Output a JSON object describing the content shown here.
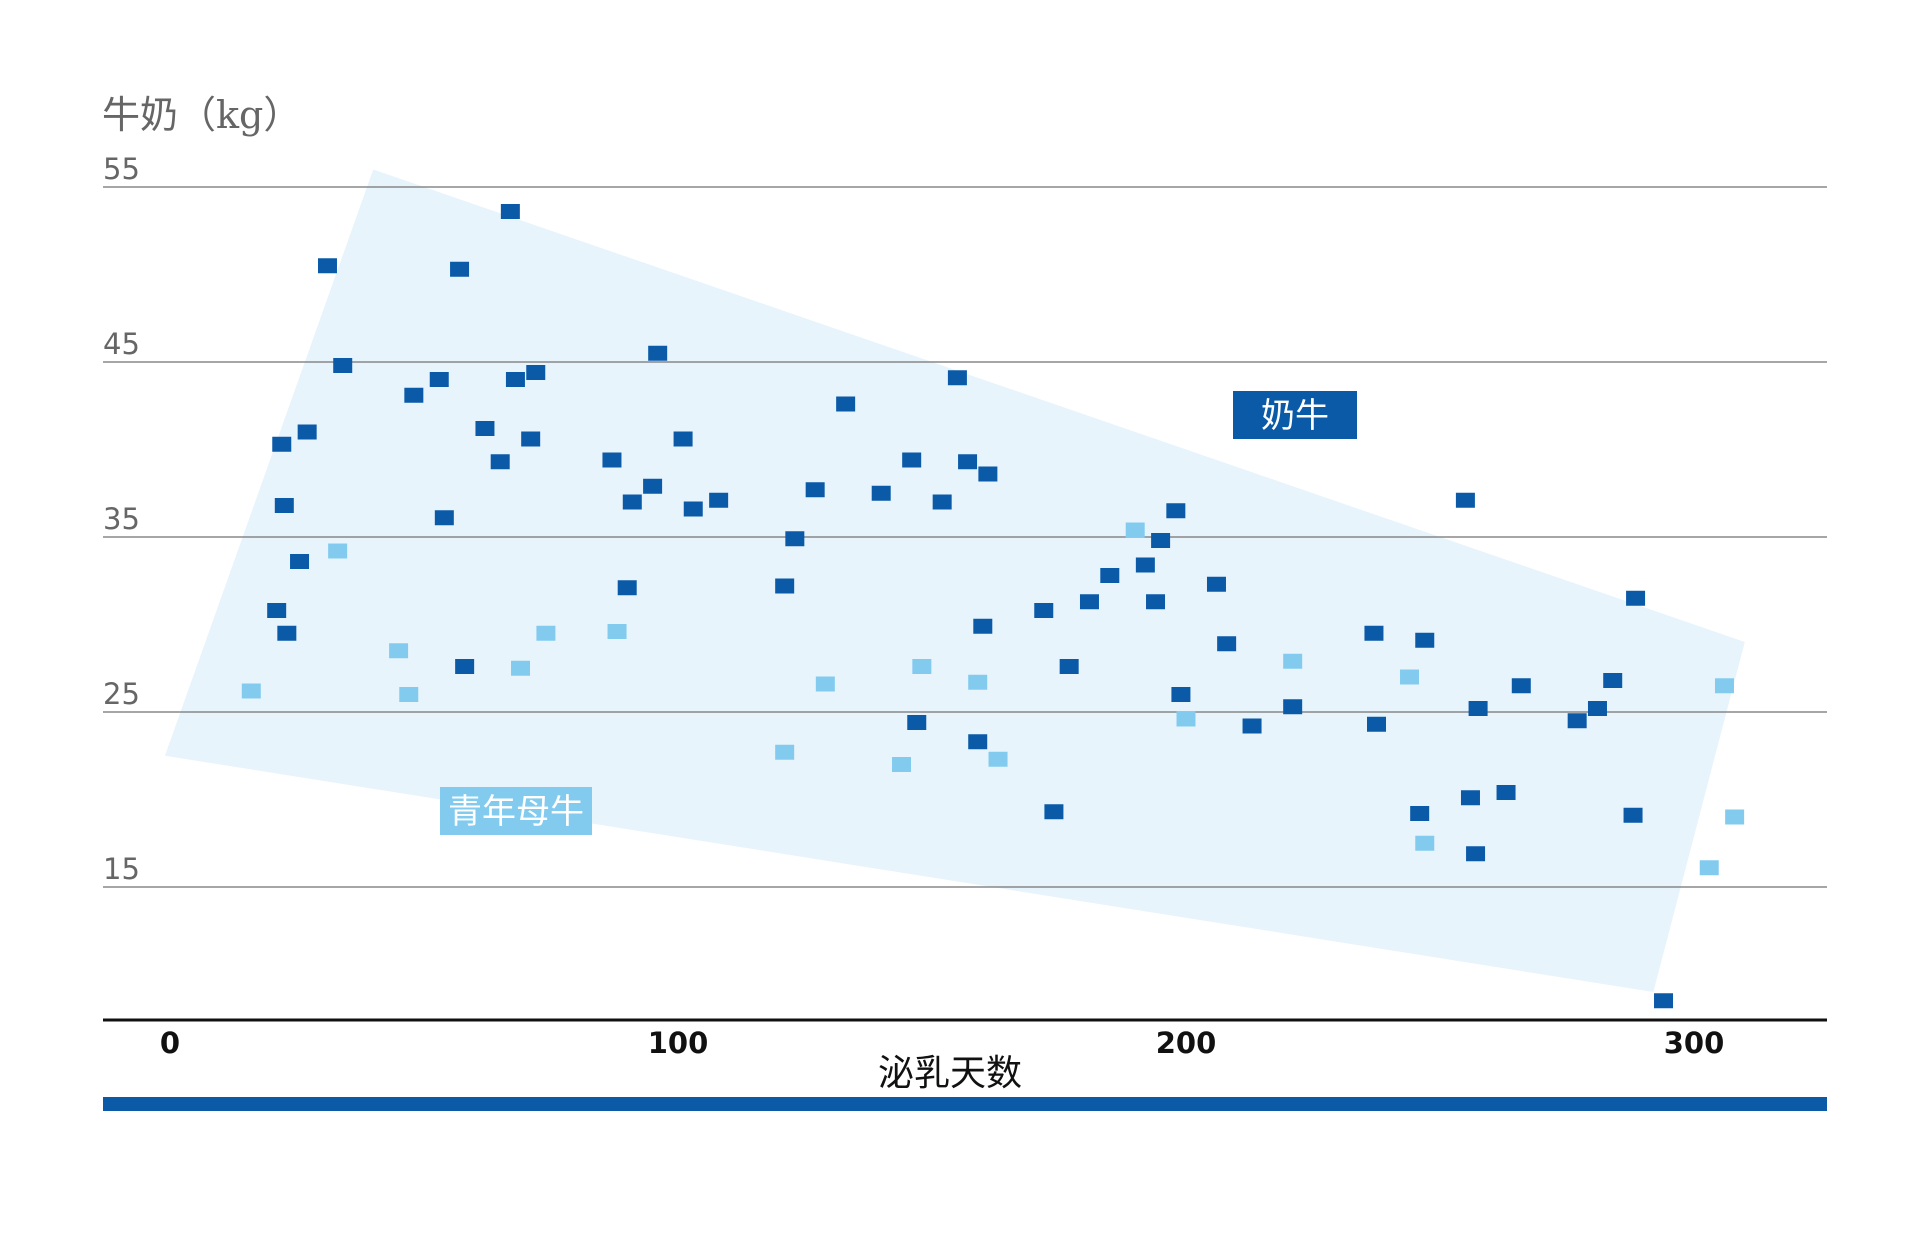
{
  "chart_data": {
    "type": "scatter",
    "title": "",
    "ylabel": "牛奶（kg）",
    "xlabel": "泌乳天数",
    "xlim": [
      -15,
      325
    ],
    "ylim": [
      7.5,
      55
    ],
    "xticks": [
      0,
      100,
      200,
      300
    ],
    "yticks": [
      15,
      25,
      35,
      45,
      55
    ],
    "grid": "horizontal",
    "band_polygon": [
      [
        40,
        56
      ],
      [
        310,
        29
      ],
      [
        292,
        9
      ],
      [
        -1,
        22.5
      ]
    ],
    "colors": {
      "band": "#e8f4fc",
      "cow": "#0a5aa8",
      "heifer": "#82cbef",
      "grid": "#888888",
      "bar": "#0a5aa8"
    },
    "series": [
      {
        "name": "奶牛",
        "color": "#0a5aa8",
        "points": [
          [
            21,
            30.8
          ],
          [
            22,
            40.3
          ],
          [
            22.5,
            36.8
          ],
          [
            23,
            29.5
          ],
          [
            25.5,
            33.6
          ],
          [
            27,
            41
          ],
          [
            31,
            50.5
          ],
          [
            34,
            44.8
          ],
          [
            48,
            43.1
          ],
          [
            53,
            44
          ],
          [
            54,
            36.1
          ],
          [
            57,
            50.3
          ],
          [
            58,
            27.6
          ],
          [
            62,
            41.2
          ],
          [
            65,
            39.3
          ],
          [
            67,
            53.6
          ],
          [
            68,
            44
          ],
          [
            71,
            40.6
          ],
          [
            72,
            44.4
          ],
          [
            87,
            39.4
          ],
          [
            90,
            32.1
          ],
          [
            91,
            37
          ],
          [
            95,
            37.9
          ],
          [
            96,
            45.5
          ],
          [
            101,
            40.6
          ],
          [
            103,
            36.6
          ],
          [
            108,
            37.1
          ],
          [
            121,
            32.2
          ],
          [
            123,
            34.9
          ],
          [
            127,
            37.7
          ],
          [
            133,
            42.6
          ],
          [
            140,
            37.5
          ],
          [
            146,
            39.4
          ],
          [
            147,
            24.4
          ],
          [
            152,
            37
          ],
          [
            155,
            44.1
          ],
          [
            157,
            39.3
          ],
          [
            159,
            23.3
          ],
          [
            160,
            29.9
          ],
          [
            161,
            38.6
          ],
          [
            172,
            30.8
          ],
          [
            174,
            19.3
          ],
          [
            177,
            27.6
          ],
          [
            181,
            31.3
          ],
          [
            185,
            32.8
          ],
          [
            192,
            33.4
          ],
          [
            194,
            31.3
          ],
          [
            195,
            34.8
          ],
          [
            198,
            36.5
          ],
          [
            199,
            26
          ],
          [
            206,
            32.3
          ],
          [
            208,
            28.9
          ],
          [
            213,
            24.2
          ],
          [
            221,
            25.3
          ],
          [
            237,
            29.5
          ],
          [
            237.5,
            24.3
          ],
          [
            246,
            19.2
          ],
          [
            247,
            29.1
          ],
          [
            255,
            37.1
          ],
          [
            256,
            20.1
          ],
          [
            257,
            16.9
          ],
          [
            257.5,
            25.2
          ],
          [
            263,
            20.4
          ],
          [
            266,
            26.5
          ],
          [
            277,
            24.5
          ],
          [
            281,
            25.2
          ],
          [
            284,
            26.8
          ],
          [
            288,
            19.1
          ],
          [
            288.5,
            31.5
          ],
          [
            294,
            8.5
          ]
        ]
      },
      {
        "name": "青年母牛",
        "color": "#82cbef",
        "points": [
          [
            16,
            26.2
          ],
          [
            33,
            34.2
          ],
          [
            45,
            28.5
          ],
          [
            47,
            26
          ],
          [
            69,
            27.5
          ],
          [
            74,
            29.5
          ],
          [
            88,
            29.6
          ],
          [
            121,
            22.7
          ],
          [
            129,
            26.6
          ],
          [
            144,
            22
          ],
          [
            148,
            27.6
          ],
          [
            159,
            26.7
          ],
          [
            163,
            22.3
          ],
          [
            190,
            35.4
          ],
          [
            200,
            24.6
          ],
          [
            221,
            27.9
          ],
          [
            244,
            27
          ],
          [
            247,
            17.5
          ],
          [
            303,
            16.1
          ],
          [
            306,
            26.5
          ],
          [
            308,
            19
          ]
        ]
      }
    ],
    "legend": [
      {
        "label": "奶牛",
        "color": "#0a5aa8",
        "placement": "upper-right-inside"
      },
      {
        "label": "青年母牛",
        "color": "#82cbef",
        "placement": "lower-left-inside"
      }
    ]
  }
}
